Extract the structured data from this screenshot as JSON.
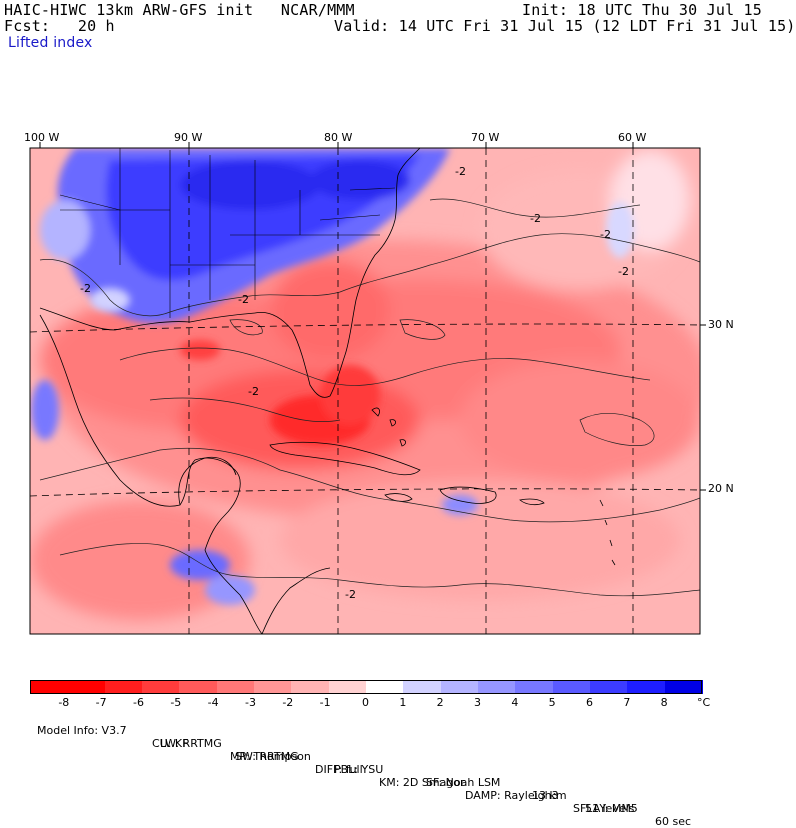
{
  "header": {
    "title_left": "HAIC-HIWC 13km ARW-GFS init   NCAR/MMM",
    "init": "Init: 18 UTC Thu 30 Jul 15",
    "fcst": "Fcst:   20 h",
    "valid": "Valid: 14 UTC Fri 31 Jul 15 (12 LDT Fri 31 Jul 15)",
    "field": "Lifted index"
  },
  "lon_labels": [
    "100 W",
    "90 W",
    "80 W",
    "70 W",
    "60 W"
  ],
  "lat_labels": [
    "30 N",
    "20 N"
  ],
  "contour_label": "-2",
  "colorbar": {
    "unit": "°C",
    "ticks": [
      "-8",
      "-7",
      "-6",
      "-5",
      "-4",
      "-3",
      "-2",
      "-1",
      "0",
      "1",
      "2",
      "3",
      "4",
      "5",
      "6",
      "7",
      "8"
    ],
    "colors": [
      "#ff0000",
      "#ff1e1e",
      "#ff3c3c",
      "#ff5a5a",
      "#ff7878",
      "#ff9696",
      "#ffb4b4",
      "#ffd2d2",
      "#ffffff",
      "#d2d2ff",
      "#b4b4ff",
      "#9696ff",
      "#7878ff",
      "#5a5aff",
      "#3c3cff",
      "#1e1eff",
      "#0000e6"
    ]
  },
  "footer": {
    "line1": [
      "Model Info: V3.7",
      "CU: KF",
      "MP: Thompson",
      "PBL: YSU",
      "SF: Noah LSM",
      "13 km",
      "51 levels",
      "60 sec"
    ],
    "line2": [
      "LW: RRTMG",
      "SW: RRTMG",
      "DIFF: full",
      "KM: 2D Smagor",
      "DAMP: Rayleigh3",
      "SFLAY: MM5"
    ]
  }
}
